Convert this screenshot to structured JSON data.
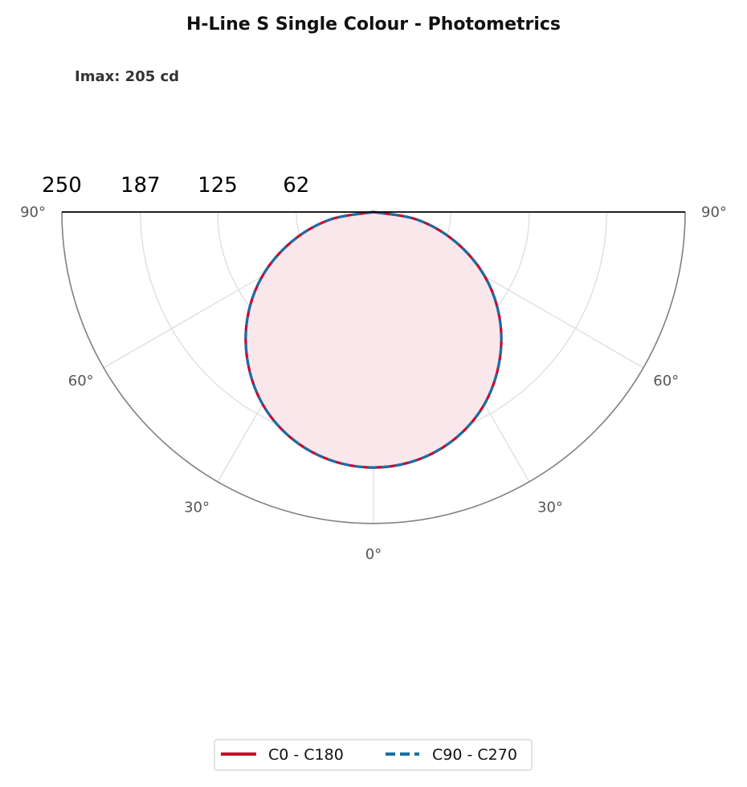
{
  "chart_data": {
    "type": "polar",
    "title": "H-Line S Single Colour - Photometrics",
    "annotation": "Imax: 205 cd",
    "radial_ticks": [
      62,
      125,
      187,
      250
    ],
    "radial_tick_labels": [
      "250",
      "187",
      "125",
      "62"
    ],
    "rmax": 250,
    "angle_ticks": [
      {
        "angle": 90,
        "side": "left",
        "label": "90°"
      },
      {
        "angle": 60,
        "side": "left",
        "label": "60°"
      },
      {
        "angle": 30,
        "side": "left",
        "label": "30°"
      },
      {
        "angle": 0,
        "side": "center",
        "label": "0°"
      },
      {
        "angle": 30,
        "side": "right",
        "label": "30°"
      },
      {
        "angle": 60,
        "side": "right",
        "label": "60°"
      },
      {
        "angle": 90,
        "side": "right",
        "label": "90°"
      }
    ],
    "legend_placement": "bottom-center",
    "grid": true,
    "series": [
      {
        "name": "C0 - C180",
        "color": "#d0002a",
        "style": "solid",
        "gamma_deg": [
          0,
          10,
          20,
          30,
          40,
          50,
          60,
          70,
          80,
          90
        ],
        "intensity_cd": [
          205,
          202,
          193,
          178,
          157,
          132,
          103,
          70,
          36,
          0
        ]
      },
      {
        "name": "C90 - C270",
        "color": "#1a6fa3",
        "style": "dashed",
        "gamma_deg": [
          0,
          10,
          20,
          30,
          40,
          50,
          60,
          70,
          80,
          90
        ],
        "intensity_cd": [
          205,
          202,
          193,
          178,
          157,
          132,
          103,
          70,
          36,
          0
        ]
      }
    ]
  }
}
